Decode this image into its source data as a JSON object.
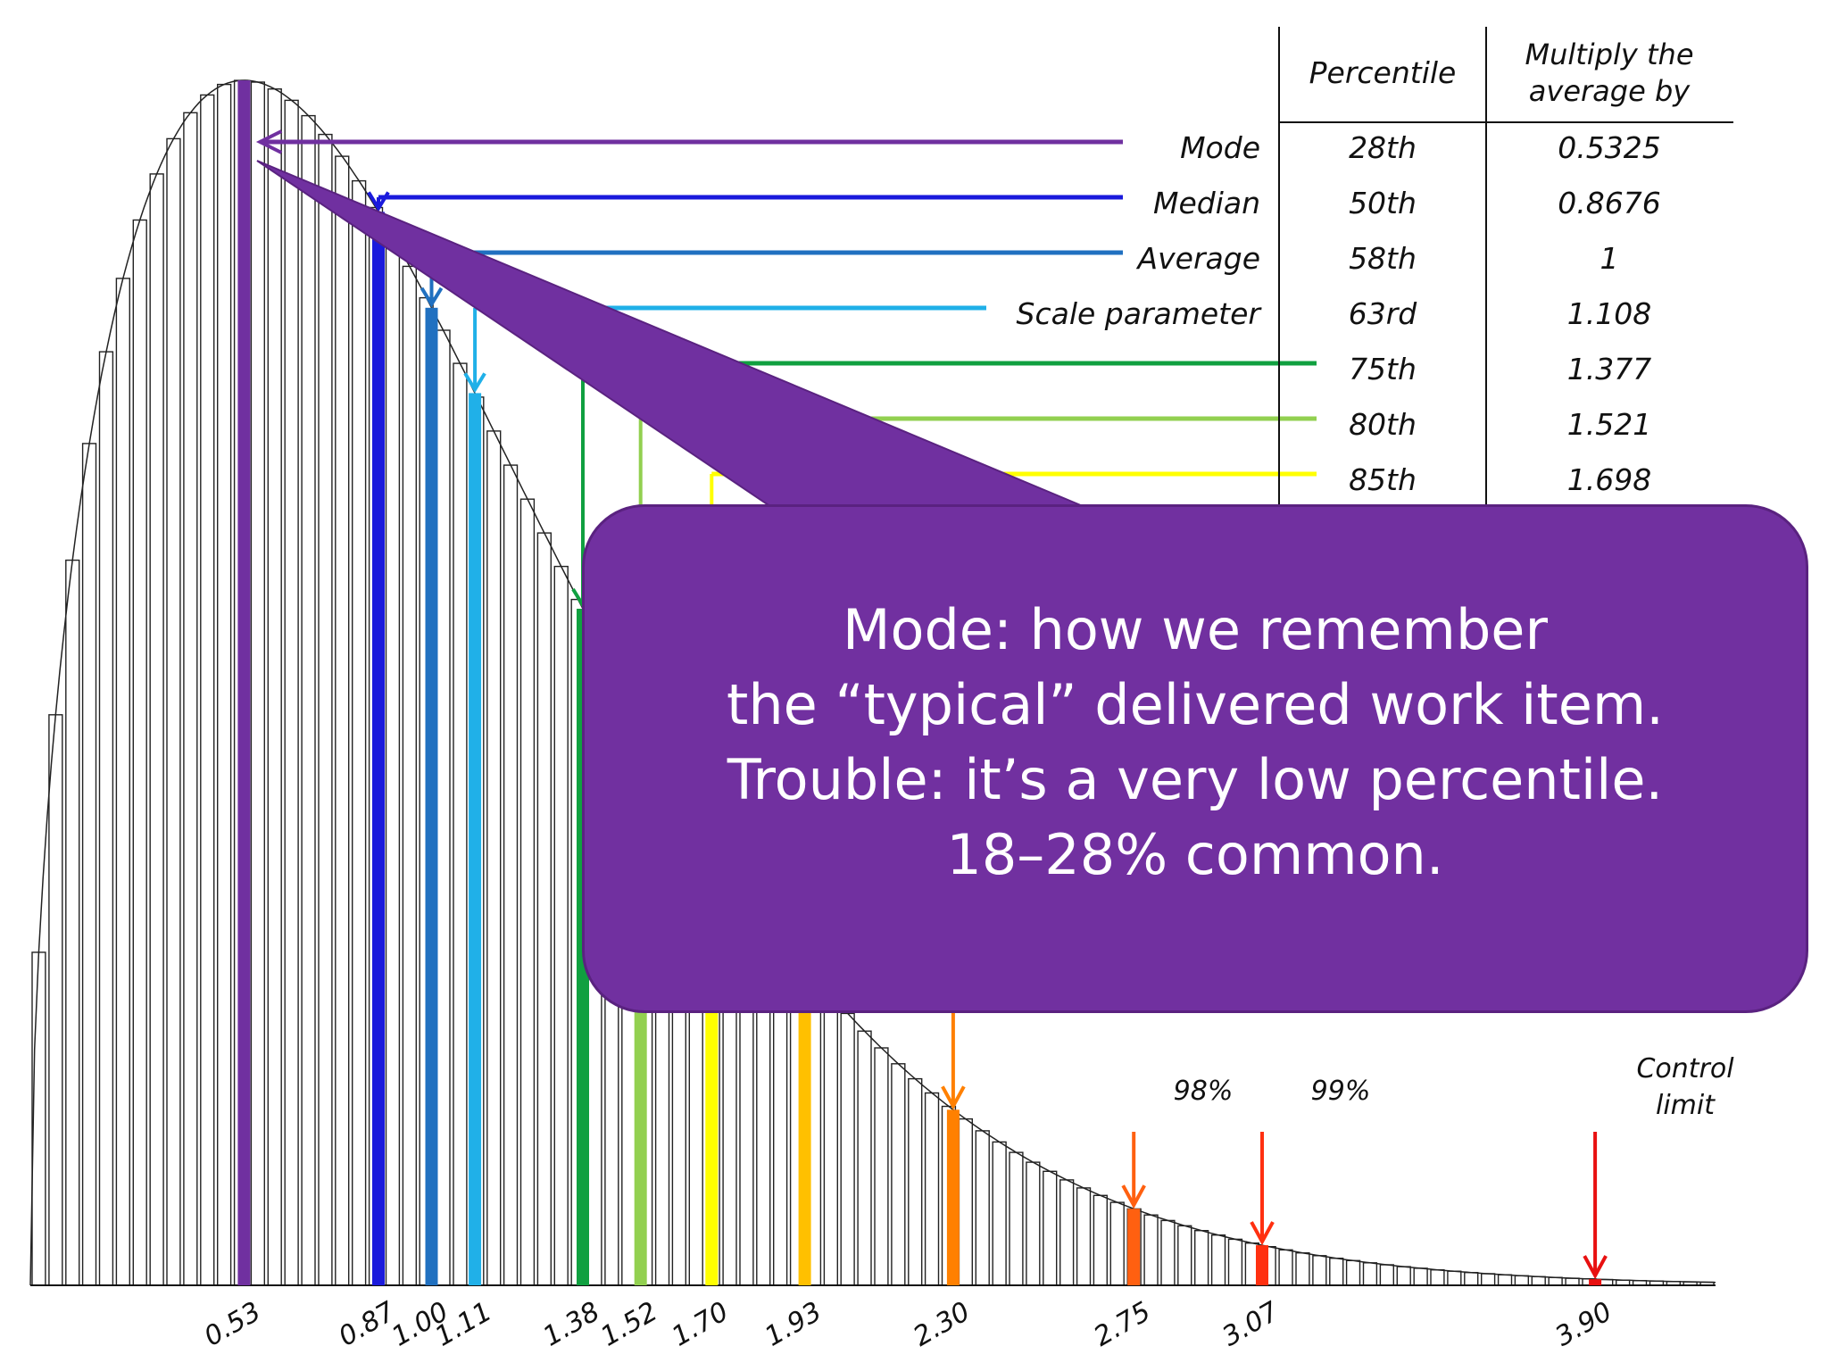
{
  "chart_data": {
    "type": "bar",
    "distribution": "weibull",
    "weibull_shape": 1.5,
    "xlim": [
      0,
      4.2
    ],
    "markers": [
      {
        "label": "0.53",
        "x": 0.5325,
        "color": "#7030a0",
        "row": "Mode"
      },
      {
        "label": "0.87",
        "x": 0.8676,
        "color": "#1a1adc",
        "row": "Median"
      },
      {
        "label": "1.00",
        "x": 1.0,
        "color": "#2070c0",
        "row": "Average"
      },
      {
        "label": "1.11",
        "x": 1.108,
        "color": "#20b0e8",
        "row": "Scale parameter"
      },
      {
        "label": "1.38",
        "x": 1.377,
        "color": "#10a040",
        "row": "75th"
      },
      {
        "label": "1.52",
        "x": 1.521,
        "color": "#92d050",
        "row": "80th"
      },
      {
        "label": "1.70",
        "x": 1.698,
        "color": "#ffff00",
        "row": "85th"
      },
      {
        "label": "1.93",
        "x": 1.93,
        "color": "#ffc000",
        "row": ""
      },
      {
        "label": "2.30",
        "x": 2.3,
        "color": "#ff8000",
        "row": ""
      },
      {
        "label": "2.75",
        "x": 2.75,
        "color": "#ff6010",
        "row": ""
      },
      {
        "label": "3.07",
        "x": 3.07,
        "color": "#ff3010",
        "row": ""
      },
      {
        "label": "3.90",
        "x": 3.9,
        "color": "#e81010",
        "row": ""
      }
    ],
    "annotations": {
      "p98": "98%",
      "p99": "99%",
      "control_limit_line1": "Control",
      "control_limit_line2": "limit"
    }
  },
  "table": {
    "header_percentile": "Percentile",
    "header_multiply_line1": "Multiply the",
    "header_multiply_line2": "average by",
    "rows": [
      {
        "name": "Mode",
        "percentile": "28th",
        "multiplier": "0.5325",
        "color": "#7030a0"
      },
      {
        "name": "Median",
        "percentile": "50th",
        "multiplier": "0.8676",
        "color": "#1a1adc"
      },
      {
        "name": "Average",
        "percentile": "58th",
        "multiplier": "1",
        "color": "#2070c0"
      },
      {
        "name": "Scale parameter",
        "percentile": "63rd",
        "multiplier": "1.108",
        "color": "#20b0e8"
      },
      {
        "name": "",
        "percentile": "75th",
        "multiplier": "1.377",
        "color": "#10a040"
      },
      {
        "name": "",
        "percentile": "80th",
        "multiplier": "1.521",
        "color": "#92d050"
      },
      {
        "name": "",
        "percentile": "85th",
        "multiplier": "1.698",
        "color": "#ffff00"
      }
    ]
  },
  "callout": {
    "text": "Mode: how we remember\nthe “typical” delivered work item.\nTrouble: it’s a very low percentile.\n18–28% common.",
    "color": "#7030a0"
  }
}
